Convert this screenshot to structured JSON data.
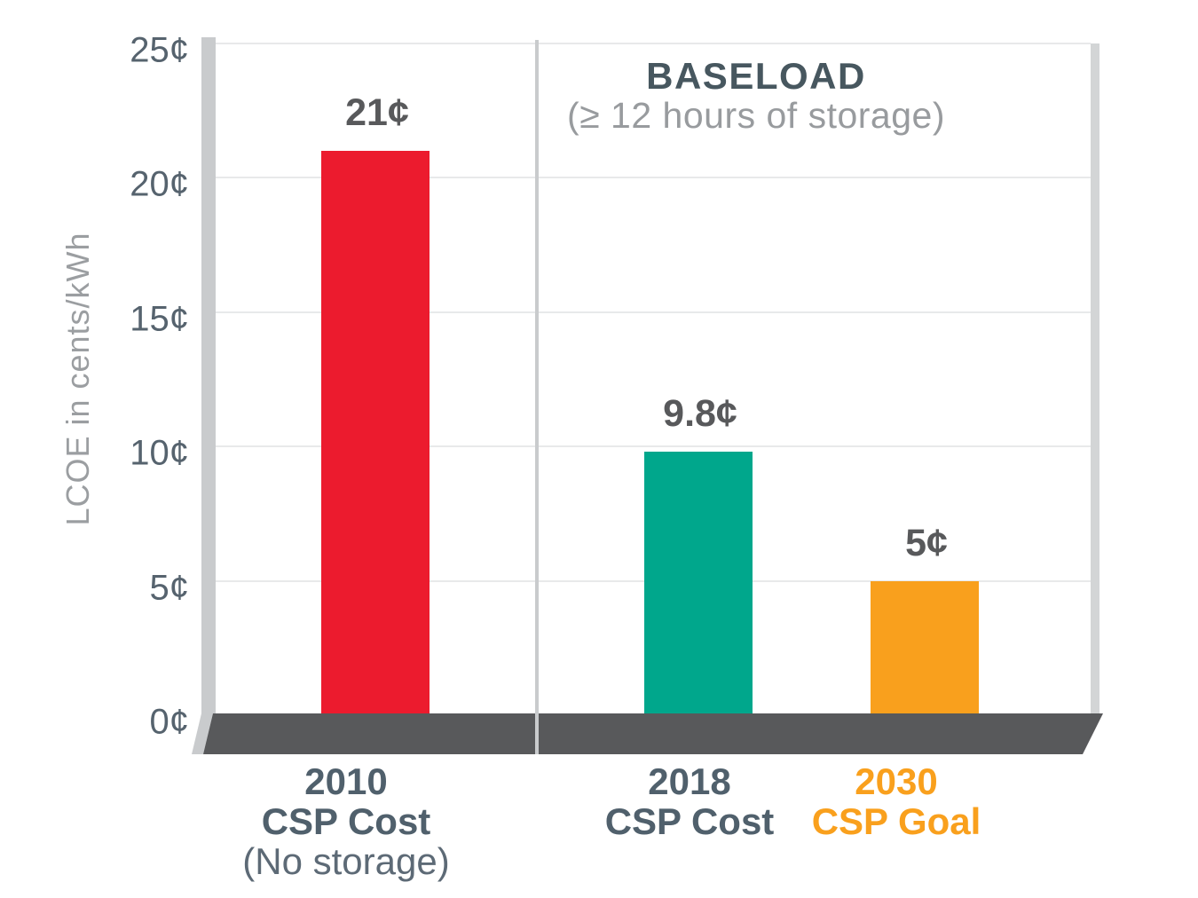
{
  "chart_data": {
    "type": "bar",
    "title": "",
    "ylabel": "LCOE in cents/kWh",
    "xlabel": "",
    "grid": true,
    "legend": "none",
    "y_axis": {
      "min": 0,
      "max": 25,
      "ticks": [
        0,
        5,
        10,
        15,
        20,
        25
      ],
      "tick_labels": [
        "0¢",
        "5¢",
        "10¢",
        "15¢",
        "20¢",
        "25¢"
      ]
    },
    "categories": [
      "2010 CSP Cost (No storage)",
      "2018 CSP Cost",
      "2030 CSP Goal"
    ],
    "values": [
      21,
      9.8,
      5
    ],
    "bars": [
      {
        "category_lines": [
          "2010",
          "CSP Cost",
          "(No storage)"
        ],
        "value": 21,
        "value_label": "21¢",
        "color": "#ec1b2e",
        "label_color": "#50606c"
      },
      {
        "category_lines": [
          "2018",
          "CSP Cost"
        ],
        "value": 9.8,
        "value_label": "9.8¢",
        "color": "#00a78c",
        "label_color": "#50606c"
      },
      {
        "category_lines": [
          "2030",
          "CSP Goal"
        ],
        "value": 5,
        "value_label": "5¢",
        "color": "#f9a01d",
        "label_color": "#f9a01d"
      }
    ],
    "annotation": {
      "title": "BASELOAD",
      "subtitle": "(≥ 12 hours of storage)"
    },
    "colors": {
      "value_label_text": "#58595b",
      "tick_text": "#56636e",
      "axis_title_text": "#9b9ea1",
      "annotation_title_text": "#47575f",
      "annotation_subtitle_text": "#989b9e",
      "floor": "#58595b",
      "axis_bar": "#c9cbcd",
      "gridline": "#e8e9ea",
      "divider": "#c9cbcd",
      "category_sub_text": "#5d6a76"
    }
  }
}
